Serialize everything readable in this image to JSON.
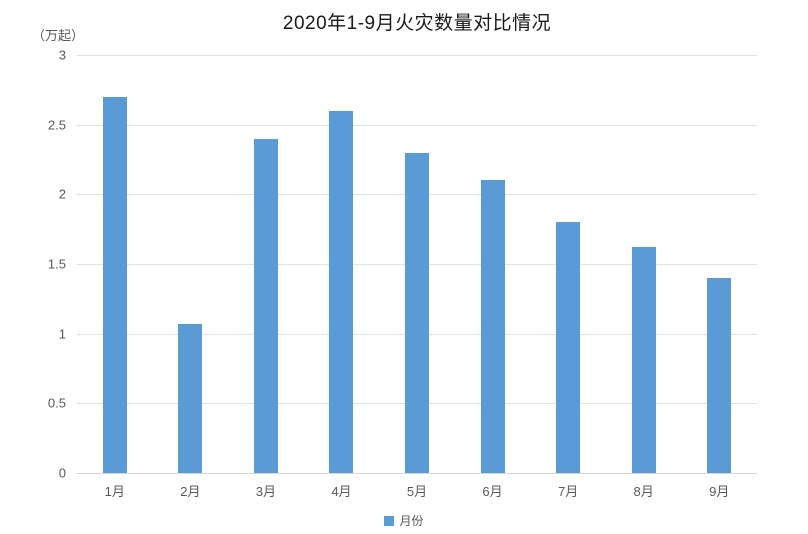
{
  "chart_data": {
    "type": "bar",
    "title": "2020年1-9月火灾数量对比情况",
    "unit_label": "（万起）",
    "ylabel": "（万起）",
    "xlabel": "",
    "categories": [
      "1月",
      "2月",
      "3月",
      "4月",
      "5月",
      "6月",
      "7月",
      "8月",
      "9月"
    ],
    "series": [
      {
        "name": "月份",
        "values": [
          2.7,
          1.07,
          2.4,
          2.6,
          2.3,
          2.1,
          1.8,
          1.62,
          1.4
        ]
      }
    ],
    "ylim": [
      0,
      3
    ],
    "yticks": [
      0,
      0.5,
      1,
      1.5,
      2,
      2.5,
      3
    ],
    "ytick_labels": [
      "0",
      "0.5",
      "1",
      "1.5",
      "2",
      "2.5",
      "3"
    ],
    "grid": true,
    "legend_position": "bottom",
    "colors": {
      "bar": "#5b9bd5",
      "gridline": "#e2e2e2",
      "axis_text": "#595959",
      "title_text": "#1a1a1a"
    }
  }
}
